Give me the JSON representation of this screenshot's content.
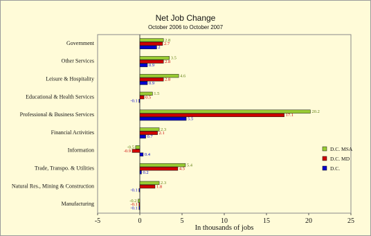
{
  "chart_data": {
    "type": "bar",
    "orientation": "horizontal",
    "title": "Net Job Change",
    "subtitle": "October 2006 to October 2007",
    "xlabel": "In thousands of jobs",
    "ylabel": "",
    "xlim": [
      -5,
      25
    ],
    "xticks": [
      -5,
      0,
      5,
      10,
      15,
      20,
      25
    ],
    "legend_position": "right",
    "categories": [
      "Government",
      "Other Services",
      "Leisure & Hospitality",
      "Educational & Health Services",
      "Professional & Business Services",
      "Financial Activities",
      "Information",
      "Trade, Transpo. & Utilities",
      "Natural Res., Mining & Construction",
      "Manufacturing"
    ],
    "series": [
      {
        "name": "D.C. MSA",
        "color": "#99cc33",
        "label_color": "#5f7f10",
        "values": [
          2.8,
          3.5,
          4.6,
          1.5,
          20.2,
          2.3,
          -0.5,
          5.4,
          2.3,
          -0.2
        ]
      },
      {
        "name": "D.C. MD",
        "color": "#cc0000",
        "label_color": "#cc0000",
        "values": [
          2.7,
          2.8,
          2.8,
          0.5,
          17.1,
          2.1,
          -0.9,
          4.5,
          1.8,
          -0.1
        ]
      },
      {
        "name": "D.C.",
        "color": "#0000cc",
        "label_color": "#0000cc",
        "values": [
          2,
          0.9,
          0.9,
          -0.1,
          5.5,
          0.7,
          0.4,
          0.2,
          -0.1,
          -0.1
        ]
      }
    ]
  }
}
